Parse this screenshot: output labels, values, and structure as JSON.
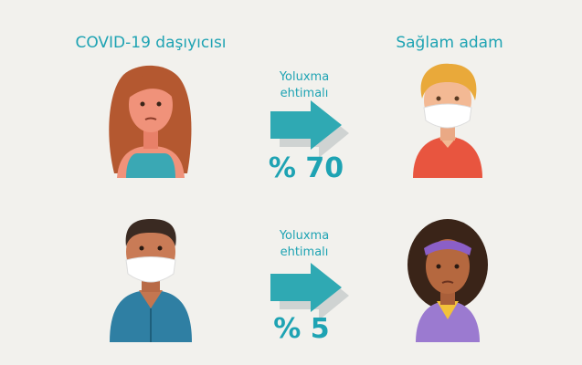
{
  "headers": {
    "left": "COVID-19 daşıyıcısı",
    "right": "Sağlam adam"
  },
  "rows": [
    {
      "label_lines": [
        "Yoluxma",
        "ehtimalı"
      ],
      "probability": "% 70"
    },
    {
      "label_lines": [
        "Yoluxma",
        "ehtimalı"
      ],
      "probability": "% 5"
    }
  ]
}
